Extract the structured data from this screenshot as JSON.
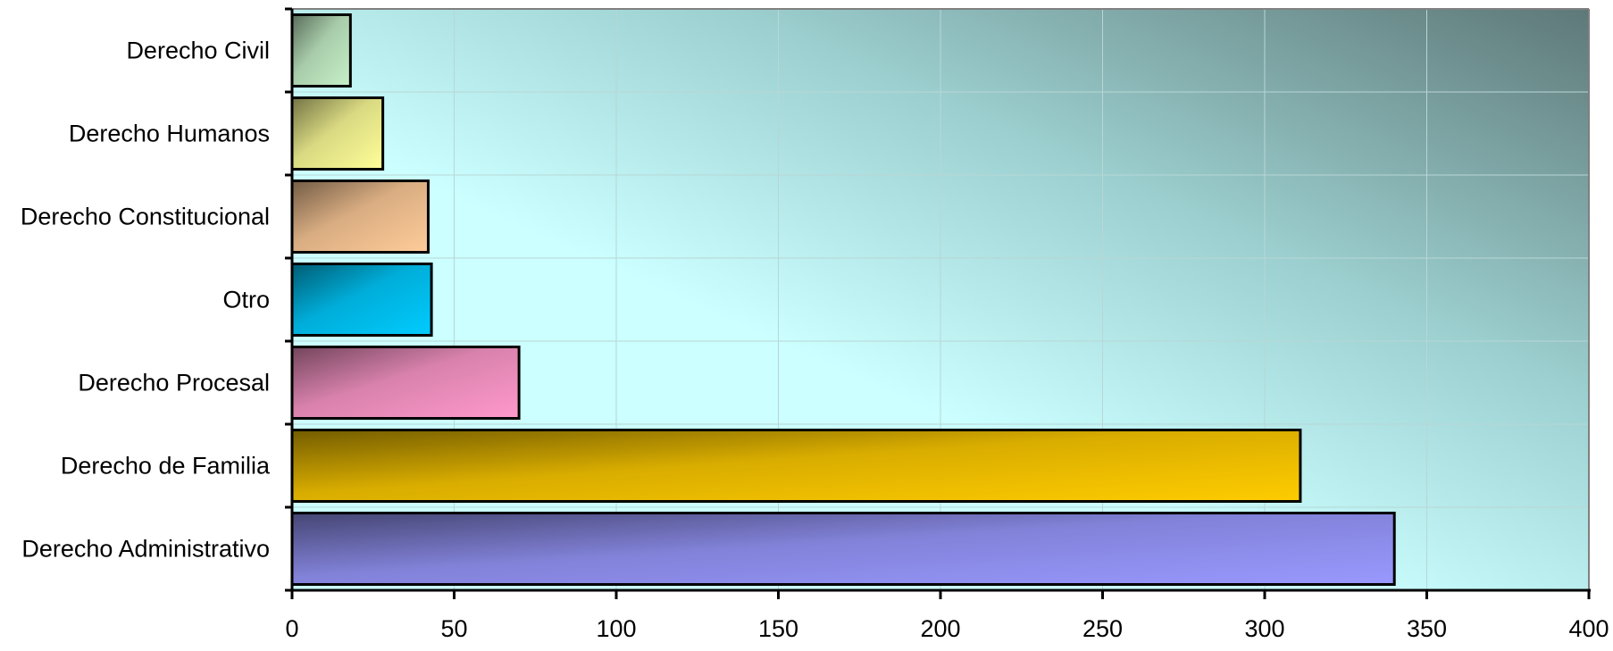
{
  "chart_data": {
    "type": "bar",
    "orientation": "horizontal",
    "categories": [
      "Derecho Civil",
      "Derecho Humanos",
      "Derecho Constitucional",
      "Otro",
      "Derecho Procesal",
      "Derecho de Familia",
      "Derecho Administrativo"
    ],
    "values": [
      18,
      28,
      42,
      43,
      70,
      311,
      340
    ],
    "bar_colors": [
      "#c6f0c8",
      "#ffff99",
      "#ffcc99",
      "#00ccff",
      "#ff99cc",
      "#ffcc00",
      "#9999ff"
    ],
    "x_ticks": [
      "0",
      "50",
      "100",
      "150",
      "200",
      "250",
      "300",
      "350",
      "400"
    ],
    "xlim": [
      0,
      400
    ],
    "grid": true,
    "legend": "none",
    "title": "",
    "xlabel": "",
    "ylabel": ""
  },
  "colors": {
    "plot_background": "#ccffff",
    "plot_shadow": "#5e7878",
    "bar_outline": "#000000"
  }
}
